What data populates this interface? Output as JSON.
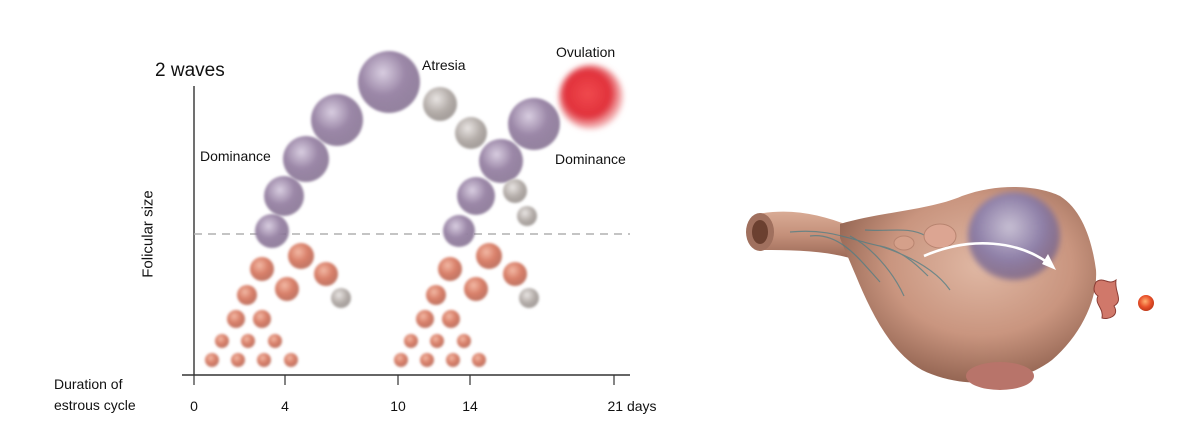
{
  "left_panel": {
    "title": "2 waves",
    "y_axis_label": "Folicular size",
    "x_axis_label_line1": "Duration of",
    "x_axis_label_line2": "estrous cycle",
    "ticks": [
      "0",
      "4",
      "10",
      "14",
      "21 days"
    ],
    "annotations": {
      "dominance_1": "Dominance",
      "atresia": "Atresia",
      "ovulation": "Ovulation",
      "dominance_2": "Dominance"
    }
  },
  "colors": {
    "small_follicle": "#d9806a",
    "dominant_follicle": "#9c88a8",
    "atretic_follicle": "#b5aeaa",
    "ovulatory_follicle": "#e0303a",
    "ovary": "#c9957f",
    "dashed_line": "#b0b0b0"
  },
  "right_panel": {
    "illustration": "ovary-with-dominant-follicle-and-ovulation"
  }
}
